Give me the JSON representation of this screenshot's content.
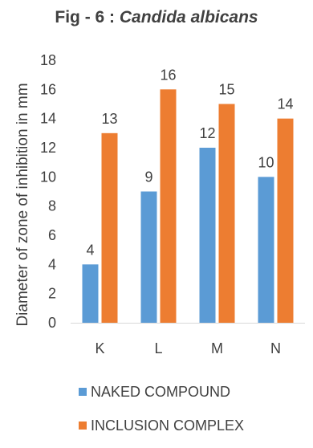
{
  "chart_data": {
    "type": "bar",
    "title_prefix": "Fig - 6 : ",
    "title_italic": "Candida albicans",
    "ylabel": "Diameter of zone of inhibition in mm",
    "xlabel": "",
    "categories": [
      "K",
      "L",
      "M",
      "N"
    ],
    "ylim": [
      0,
      18
    ],
    "yticks": [
      0,
      2,
      4,
      6,
      8,
      10,
      12,
      14,
      16,
      18
    ],
    "grid": false,
    "legend_position": "bottom",
    "series": [
      {
        "name": "NAKED COMPOUND",
        "values": [
          4,
          9,
          12,
          10
        ],
        "color": "#5B9BD5"
      },
      {
        "name": "INCLUSION COMPLEX",
        "values": [
          13,
          16,
          15,
          14
        ],
        "color": "#ED7D31"
      }
    ],
    "data_labels": true
  }
}
